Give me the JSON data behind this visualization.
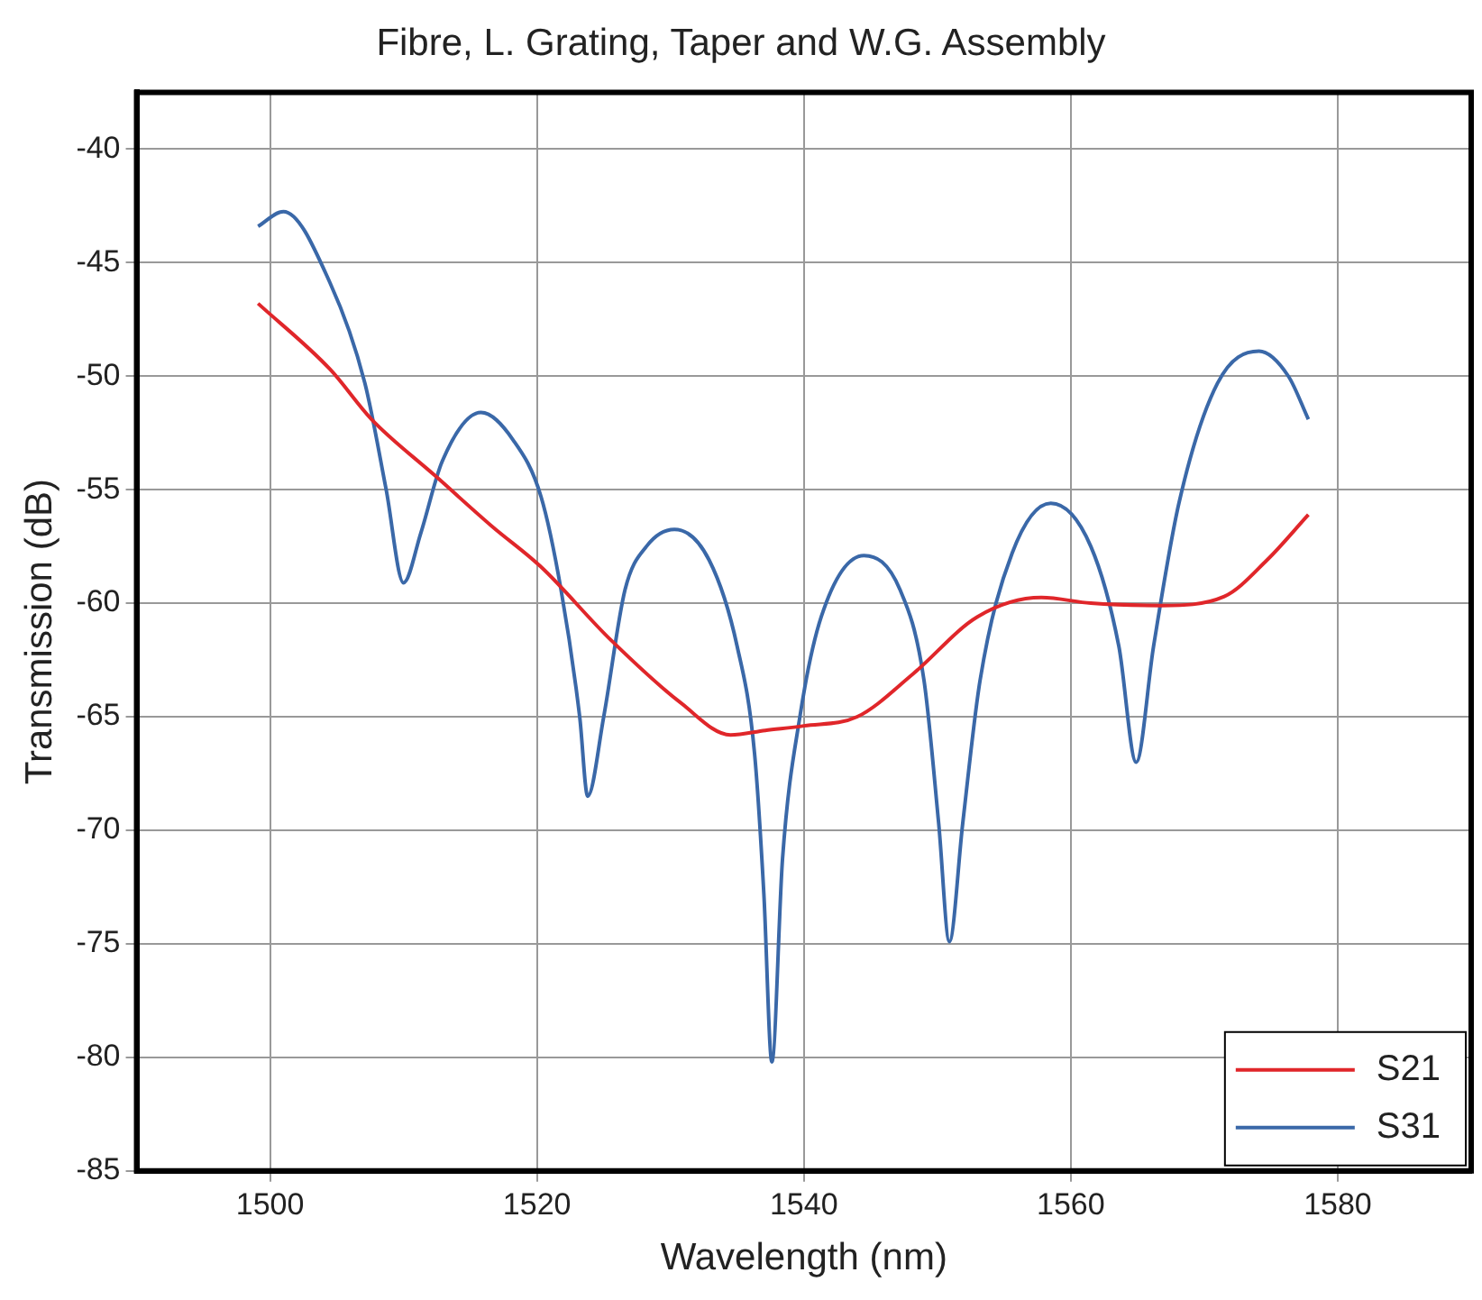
{
  "chart_data": {
    "type": "line",
    "title": "Fibre, L. Grating, Taper and W.G. Assembly",
    "xlabel": "Wavelength (nm)",
    "ylabel": "Transmission (dB)",
    "xlim": [
      1490,
      1590
    ],
    "xticks": [
      1500,
      1520,
      1540,
      1560,
      1580
    ],
    "ylim": [
      -85,
      -37.5
    ],
    "yticks": [
      -85,
      -80,
      -75,
      -70,
      -65,
      -60,
      -55,
      -50,
      -45,
      -40
    ],
    "grid": true,
    "legend": "bottom right",
    "marker": "none",
    "line_style": "solid",
    "series": [
      {
        "name": "S21",
        "color": "#e0262a",
        "x": [
          1499.1,
          1504.5,
          1507.6,
          1512.4,
          1516.6,
          1520.3,
          1525.5,
          1530.8,
          1534.5,
          1537.1,
          1540,
          1544,
          1548.2,
          1553,
          1557.8,
          1561.5,
          1566.8,
          1571.5,
          1574.7,
          1577.8
        ],
        "values": [
          -46.8,
          -49.7,
          -51.9,
          -54.4,
          -56.6,
          -58.4,
          -61.6,
          -64.4,
          -65.8,
          -65.6,
          -65.4,
          -65,
          -63.1,
          -60.6,
          -59.75,
          -60,
          -60.1,
          -59.7,
          -58.1,
          -56.1
        ]
      },
      {
        "name": "S31",
        "color": "#3a68a8",
        "x": [
          1499.1,
          1501,
          1504.5,
          1507.1,
          1508.7,
          1510,
          1511.3,
          1512.9,
          1515.8,
          1518.2,
          1520.3,
          1521.8,
          1523.2,
          1523.8,
          1525,
          1526.6,
          1528.2,
          1530.3,
          1532.9,
          1535,
          1536.3,
          1537,
          1537.6,
          1538.4,
          1539.7,
          1541.3,
          1544.5,
          1547.2,
          1549,
          1550.1,
          1550.9,
          1551.9,
          1553.2,
          1555.6,
          1558.5,
          1561.5,
          1563.6,
          1564.9,
          1566.2,
          1568.1,
          1571,
          1574.1,
          1576.3,
          1577.8
        ],
        "values": [
          -43.4,
          -42.75,
          -45.9,
          -50.3,
          -55,
          -59.1,
          -56.9,
          -53.75,
          -51.6,
          -52.8,
          -55.3,
          -59.4,
          -65,
          -68.5,
          -65,
          -59.4,
          -57.5,
          -56.75,
          -58.1,
          -61.9,
          -66.6,
          -72.8,
          -80.2,
          -71.25,
          -65,
          -60.6,
          -57.9,
          -59.4,
          -63.4,
          -69.7,
          -74.9,
          -69.7,
          -63.4,
          -57.8,
          -55.6,
          -57.5,
          -61.9,
          -67,
          -61.9,
          -55.6,
          -50.3,
          -48.9,
          -50,
          -51.9
        ]
      }
    ]
  }
}
